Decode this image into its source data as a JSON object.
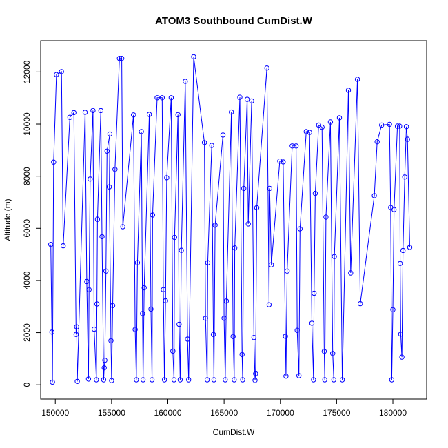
{
  "chart_data": {
    "type": "line",
    "title": "ATOM3 Southbound CumDist.W",
    "xlabel": "CumDist.W",
    "ylabel": "Altitude (m)",
    "xlim": [
      148700,
      183000
    ],
    "ylim": [
      -550,
      13200
    ],
    "x_ticks": [
      150000,
      155000,
      160000,
      165000,
      170000,
      175000,
      180000
    ],
    "x_tick_labels": [
      "150000",
      "155000",
      "160000",
      "165000",
      "170000",
      "175000",
      "180000"
    ],
    "y_ticks": [
      0,
      2000,
      4000,
      6000,
      8000,
      10000,
      12000
    ],
    "y_tick_labels": [
      "0",
      "2000",
      "4000",
      "6000",
      "8000",
      "10000",
      "12000"
    ],
    "line_color": "#0000ff",
    "marker": "open-circle",
    "series": [
      {
        "name": "Altitude",
        "points": [
          [
            149600,
            5380
          ],
          [
            149700,
            2020
          ],
          [
            149750,
            100
          ],
          [
            149850,
            8540
          ],
          [
            150100,
            11900
          ],
          [
            150550,
            12010
          ],
          [
            150700,
            5330
          ],
          [
            151300,
            10260
          ],
          [
            151650,
            10440
          ],
          [
            151850,
            1930
          ],
          [
            151900,
            2220
          ],
          [
            151950,
            130
          ],
          [
            152650,
            10450
          ],
          [
            152800,
            3960
          ],
          [
            152950,
            220
          ],
          [
            153000,
            3650
          ],
          [
            153100,
            7890
          ],
          [
            153350,
            10520
          ],
          [
            153450,
            2130
          ],
          [
            153650,
            190
          ],
          [
            153700,
            3100
          ],
          [
            153750,
            6350
          ],
          [
            154050,
            10520
          ],
          [
            154150,
            5680
          ],
          [
            154300,
            190
          ],
          [
            154350,
            650
          ],
          [
            154400,
            940
          ],
          [
            154500,
            4360
          ],
          [
            154600,
            8960
          ],
          [
            154850,
            9620
          ],
          [
            154800,
            7590
          ],
          [
            154950,
            1690
          ],
          [
            155000,
            160
          ],
          [
            155100,
            3040
          ],
          [
            155300,
            8260
          ],
          [
            155700,
            12520
          ],
          [
            155900,
            12520
          ],
          [
            156000,
            6060
          ],
          [
            156950,
            10350
          ],
          [
            157100,
            2120
          ],
          [
            157200,
            190
          ],
          [
            157300,
            4680
          ],
          [
            157650,
            9710
          ],
          [
            157750,
            2730
          ],
          [
            157800,
            190
          ],
          [
            157900,
            3720
          ],
          [
            158350,
            10370
          ],
          [
            158500,
            2900
          ],
          [
            158600,
            190
          ],
          [
            158650,
            6510
          ],
          [
            159050,
            11010
          ],
          [
            159500,
            11010
          ],
          [
            159600,
            3650
          ],
          [
            159700,
            190
          ],
          [
            159800,
            3220
          ],
          [
            159900,
            7940
          ],
          [
            160300,
            11010
          ],
          [
            160450,
            1290
          ],
          [
            160550,
            190
          ],
          [
            160600,
            5650
          ],
          [
            160900,
            10360
          ],
          [
            161000,
            2320
          ],
          [
            161100,
            190
          ],
          [
            161200,
            5160
          ],
          [
            161550,
            11640
          ],
          [
            161750,
            1750
          ],
          [
            161850,
            190
          ],
          [
            162300,
            12580
          ],
          [
            163250,
            9290
          ],
          [
            163350,
            2550
          ],
          [
            163500,
            190
          ],
          [
            163550,
            4680
          ],
          [
            163900,
            9180
          ],
          [
            164050,
            1930
          ],
          [
            164100,
            190
          ],
          [
            164200,
            6120
          ],
          [
            164900,
            9580
          ],
          [
            165000,
            2550
          ],
          [
            165100,
            190
          ],
          [
            165200,
            3210
          ],
          [
            165650,
            10460
          ],
          [
            165800,
            1850
          ],
          [
            165900,
            190
          ],
          [
            165950,
            5250
          ],
          [
            166400,
            11030
          ],
          [
            166600,
            1160
          ],
          [
            166650,
            190
          ],
          [
            166750,
            7530
          ],
          [
            167050,
            10950
          ],
          [
            167150,
            6170
          ],
          [
            167450,
            10890
          ],
          [
            167650,
            1810
          ],
          [
            167750,
            170
          ],
          [
            167800,
            420
          ],
          [
            167900,
            6790
          ],
          [
            168800,
            12150
          ],
          [
            169000,
            3070
          ],
          [
            169050,
            7530
          ],
          [
            169200,
            4600
          ],
          [
            169950,
            8580
          ],
          [
            170250,
            8550
          ],
          [
            170450,
            1860
          ],
          [
            170500,
            330
          ],
          [
            170600,
            4360
          ],
          [
            171050,
            9160
          ],
          [
            171400,
            9160
          ],
          [
            171500,
            2090
          ],
          [
            171650,
            350
          ],
          [
            171750,
            5980
          ],
          [
            172300,
            9710
          ],
          [
            172600,
            9680
          ],
          [
            172800,
            2360
          ],
          [
            172950,
            190
          ],
          [
            173000,
            3510
          ],
          [
            173100,
            7340
          ],
          [
            173400,
            9960
          ],
          [
            173700,
            9880
          ],
          [
            173900,
            1280
          ],
          [
            173950,
            190
          ],
          [
            174050,
            6430
          ],
          [
            174450,
            10080
          ],
          [
            174650,
            1200
          ],
          [
            174750,
            190
          ],
          [
            174800,
            4920
          ],
          [
            175250,
            10240
          ],
          [
            175500,
            190
          ],
          [
            176050,
            11300
          ],
          [
            176250,
            4290
          ],
          [
            176850,
            11720
          ],
          [
            177100,
            3110
          ],
          [
            178350,
            7250
          ],
          [
            178600,
            9320
          ],
          [
            179000,
            9960
          ],
          [
            179700,
            9990
          ],
          [
            179800,
            6800
          ],
          [
            179900,
            190
          ],
          [
            180000,
            2880
          ],
          [
            180100,
            6720
          ],
          [
            180400,
            9920
          ],
          [
            180600,
            9920
          ],
          [
            180650,
            4650
          ],
          [
            180700,
            1940
          ],
          [
            180800,
            1060
          ],
          [
            180900,
            5150
          ],
          [
            181050,
            7970
          ],
          [
            181200,
            9900
          ],
          [
            181300,
            9420
          ],
          [
            181500,
            5270
          ]
        ]
      }
    ]
  }
}
